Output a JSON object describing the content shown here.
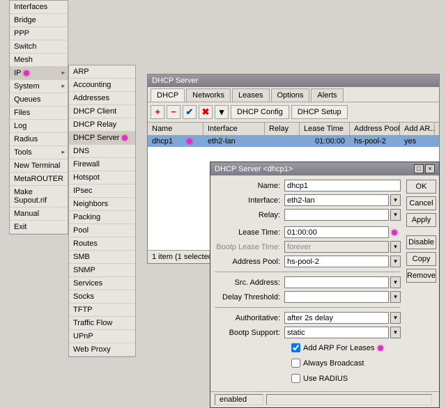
{
  "colors": {
    "bg": "#d6d3ce",
    "panel": "#e8e5de",
    "select_row": "#7da7d9",
    "highlight_dot": "#e030c0"
  },
  "main_menu": [
    {
      "label": "Interfaces",
      "arrow": false
    },
    {
      "label": "Bridge",
      "arrow": false
    },
    {
      "label": "PPP",
      "arrow": false
    },
    {
      "label": "Switch",
      "arrow": false
    },
    {
      "label": "Mesh",
      "arrow": false
    },
    {
      "label": "IP",
      "arrow": true,
      "hl": true,
      "dot": true
    },
    {
      "label": "System",
      "arrow": true
    },
    {
      "label": "Queues",
      "arrow": false
    },
    {
      "label": "Files",
      "arrow": false
    },
    {
      "label": "Log",
      "arrow": false
    },
    {
      "label": "Radius",
      "arrow": false
    },
    {
      "label": "Tools",
      "arrow": true
    },
    {
      "label": "New Terminal",
      "arrow": false
    },
    {
      "label": "MetaROUTER",
      "arrow": false
    },
    {
      "label": "Make Supout.rif",
      "arrow": false
    },
    {
      "label": "Manual",
      "arrow": false
    },
    {
      "label": "Exit",
      "arrow": false
    }
  ],
  "sub_menu": [
    {
      "label": "ARP"
    },
    {
      "label": "Accounting"
    },
    {
      "label": "Addresses"
    },
    {
      "label": "DHCP Client"
    },
    {
      "label": "DHCP Relay"
    },
    {
      "label": "DHCP Server",
      "hl": true,
      "dot": true
    },
    {
      "label": "DNS"
    },
    {
      "label": "Firewall"
    },
    {
      "label": "Hotspot"
    },
    {
      "label": "IPsec"
    },
    {
      "label": "Neighbors"
    },
    {
      "label": "Packing"
    },
    {
      "label": "Pool"
    },
    {
      "label": "Routes"
    },
    {
      "label": "SMB"
    },
    {
      "label": "SNMP"
    },
    {
      "label": "Services"
    },
    {
      "label": "Socks"
    },
    {
      "label": "TFTP"
    },
    {
      "label": "Traffic Flow"
    },
    {
      "label": "UPnP"
    },
    {
      "label": "Web Proxy"
    }
  ],
  "dhcp_window": {
    "title": "DHCP Server",
    "tabs": [
      "DHCP",
      "Networks",
      "Leases",
      "Options",
      "Alerts"
    ],
    "active_tab": 0,
    "toolbar": {
      "config": "DHCP Config",
      "setup": "DHCP Setup"
    },
    "columns": [
      {
        "label": "Name",
        "w": 80
      },
      {
        "label": "Interface",
        "w": 88
      },
      {
        "label": "Relay",
        "w": 50
      },
      {
        "label": "Lease Time",
        "w": 72
      },
      {
        "label": "Address Pool",
        "w": 72
      },
      {
        "label": "Add AR...",
        "w": 50
      }
    ],
    "rows": [
      {
        "name": "dhcp1",
        "interface": "eth2-lan",
        "relay": "",
        "lease": "01:00:00",
        "pool": "hs-pool-2",
        "addar": "yes"
      }
    ],
    "status": "1 item (1 selected)"
  },
  "dialog": {
    "title": "DHCP Server <dhcp1>",
    "fields": {
      "name_label": "Name:",
      "name": "dhcp1",
      "interface_label": "Interface:",
      "interface": "eth2-lan",
      "relay_label": "Relay:",
      "relay": "",
      "lease_label": "Lease Time:",
      "lease": "01:00:00",
      "bootp_lease_label": "Bootp Lease Time:",
      "bootp_lease": "forever",
      "pool_label": "Address Pool:",
      "pool": "hs-pool-2",
      "src_label": "Src. Address:",
      "src": "",
      "delay_label": "Delay Threshold:",
      "delay": "",
      "auth_label": "Authoritative:",
      "auth": "after 2s delay",
      "bootp_sup_label": "Bootp Support:",
      "bootp_sup": "static",
      "cb1": "Add ARP For Leases",
      "cb1_checked": true,
      "cb2": "Always Broadcast",
      "cb2_checked": false,
      "cb3": "Use RADIUS",
      "cb3_checked": false
    },
    "buttons": {
      "ok": "OK",
      "cancel": "Cancel",
      "apply": "Apply",
      "disable": "Disable",
      "copy": "Copy",
      "remove": "Remove"
    },
    "status": "enabled"
  }
}
